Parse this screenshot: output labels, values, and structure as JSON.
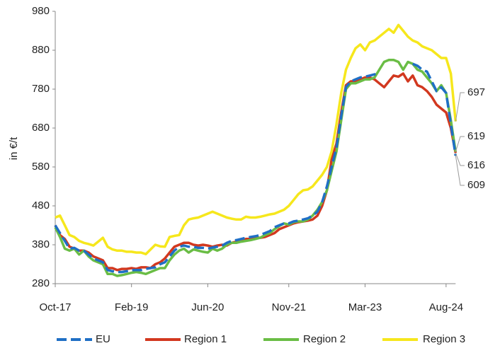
{
  "chart_data": {
    "type": "line",
    "y_label": "in €/t",
    "categories": [
      "Oct-17",
      null,
      null,
      null,
      null,
      null,
      null,
      null,
      null,
      null,
      null,
      null,
      null,
      null,
      null,
      null,
      "Feb-19",
      null,
      null,
      null,
      null,
      null,
      null,
      null,
      null,
      null,
      null,
      null,
      null,
      null,
      null,
      null,
      "Jun-20",
      null,
      null,
      null,
      null,
      null,
      null,
      null,
      null,
      null,
      null,
      null,
      null,
      null,
      null,
      null,
      null,
      "Nov-21",
      null,
      null,
      null,
      null,
      null,
      null,
      null,
      null,
      null,
      null,
      null,
      null,
      null,
      null,
      null,
      "Mar-23",
      null,
      null,
      null,
      null,
      null,
      null,
      null,
      null,
      null,
      null,
      null,
      null,
      null,
      null,
      null,
      null,
      "Aug-24",
      null,
      null
    ],
    "series": [
      {
        "name": "EU",
        "color": "#1f6fc5",
        "dashed": true,
        "values": [
          430,
          410,
          390,
          370,
          372,
          365,
          365,
          355,
          345,
          340,
          335,
          315,
          312,
          310,
          310,
          312,
          315,
          315,
          315,
          318,
          320,
          322,
          330,
          335,
          350,
          365,
          375,
          378,
          375,
          375,
          372,
          372,
          370,
          373,
          375,
          378,
          385,
          390,
          392,
          395,
          398,
          400,
          402,
          405,
          410,
          415,
          425,
          430,
          435,
          435,
          440,
          442,
          445,
          448,
          455,
          465,
          490,
          530,
          580,
          630,
          710,
          785,
          800,
          805,
          810,
          812,
          815,
          818,
          820,
          null,
          null,
          null,
          null,
          null,
          null,
          845,
          840,
          830,
          825,
          800,
          775,
          785,
          770,
          690,
          609
        ]
      },
      {
        "name": "Region 1",
        "color": "#d2381f",
        "values": [
          430,
          405,
          395,
          375,
          370,
          365,
          365,
          360,
          350,
          345,
          340,
          320,
          320,
          315,
          318,
          318,
          320,
          318,
          322,
          322,
          320,
          330,
          335,
          345,
          360,
          375,
          380,
          385,
          385,
          380,
          378,
          380,
          378,
          375,
          378,
          380,
          378,
          385,
          388,
          392,
          395,
          395,
          398,
          398,
          400,
          405,
          410,
          420,
          425,
          430,
          435,
          438,
          440,
          442,
          445,
          455,
          480,
          520,
          600,
          640,
          720,
          790,
          800,
          800,
          805,
          810,
          810,
          805,
          795,
          785,
          800,
          815,
          812,
          820,
          800,
          815,
          790,
          785,
          775,
          760,
          740,
          730,
          720,
          680,
          616
        ]
      },
      {
        "name": "Region 2",
        "color": "#6abd45",
        "values": [
          425,
          400,
          370,
          365,
          370,
          355,
          365,
          350,
          340,
          335,
          330,
          305,
          305,
          300,
          302,
          305,
          308,
          310,
          308,
          305,
          310,
          315,
          320,
          320,
          340,
          355,
          365,
          370,
          360,
          368,
          365,
          362,
          360,
          370,
          365,
          370,
          380,
          385,
          385,
          388,
          390,
          392,
          395,
          398,
          405,
          410,
          420,
          428,
          435,
          432,
          438,
          440,
          440,
          445,
          455,
          470,
          490,
          520,
          570,
          620,
          700,
          780,
          795,
          795,
          800,
          805,
          805,
          810,
          830,
          850,
          855,
          855,
          850,
          830,
          850,
          845,
          830,
          825,
          810,
          795,
          775,
          790,
          770,
          700,
          619
        ]
      },
      {
        "name": "Region 3",
        "color": "#f6e71c",
        "values": [
          450,
          455,
          430,
          405,
          400,
          390,
          385,
          382,
          378,
          388,
          398,
          375,
          368,
          365,
          365,
          362,
          362,
          360,
          360,
          356,
          368,
          380,
          376,
          375,
          400,
          403,
          405,
          430,
          445,
          448,
          450,
          455,
          460,
          465,
          460,
          455,
          450,
          447,
          445,
          445,
          452,
          450,
          450,
          452,
          455,
          458,
          460,
          465,
          470,
          480,
          495,
          510,
          520,
          522,
          530,
          545,
          560,
          580,
          620,
          690,
          770,
          830,
          860,
          885,
          895,
          880,
          900,
          905,
          915,
          925,
          935,
          925,
          945,
          930,
          915,
          905,
          900,
          890,
          885,
          880,
          870,
          860,
          860,
          820,
          697
        ]
      }
    ],
    "annotations": [
      "697",
      "619",
      "616",
      "609"
    ],
    "ylim": [
      280,
      980
    ],
    "yticks": [
      280,
      380,
      480,
      580,
      680,
      780,
      880,
      980
    ],
    "grid": false
  }
}
